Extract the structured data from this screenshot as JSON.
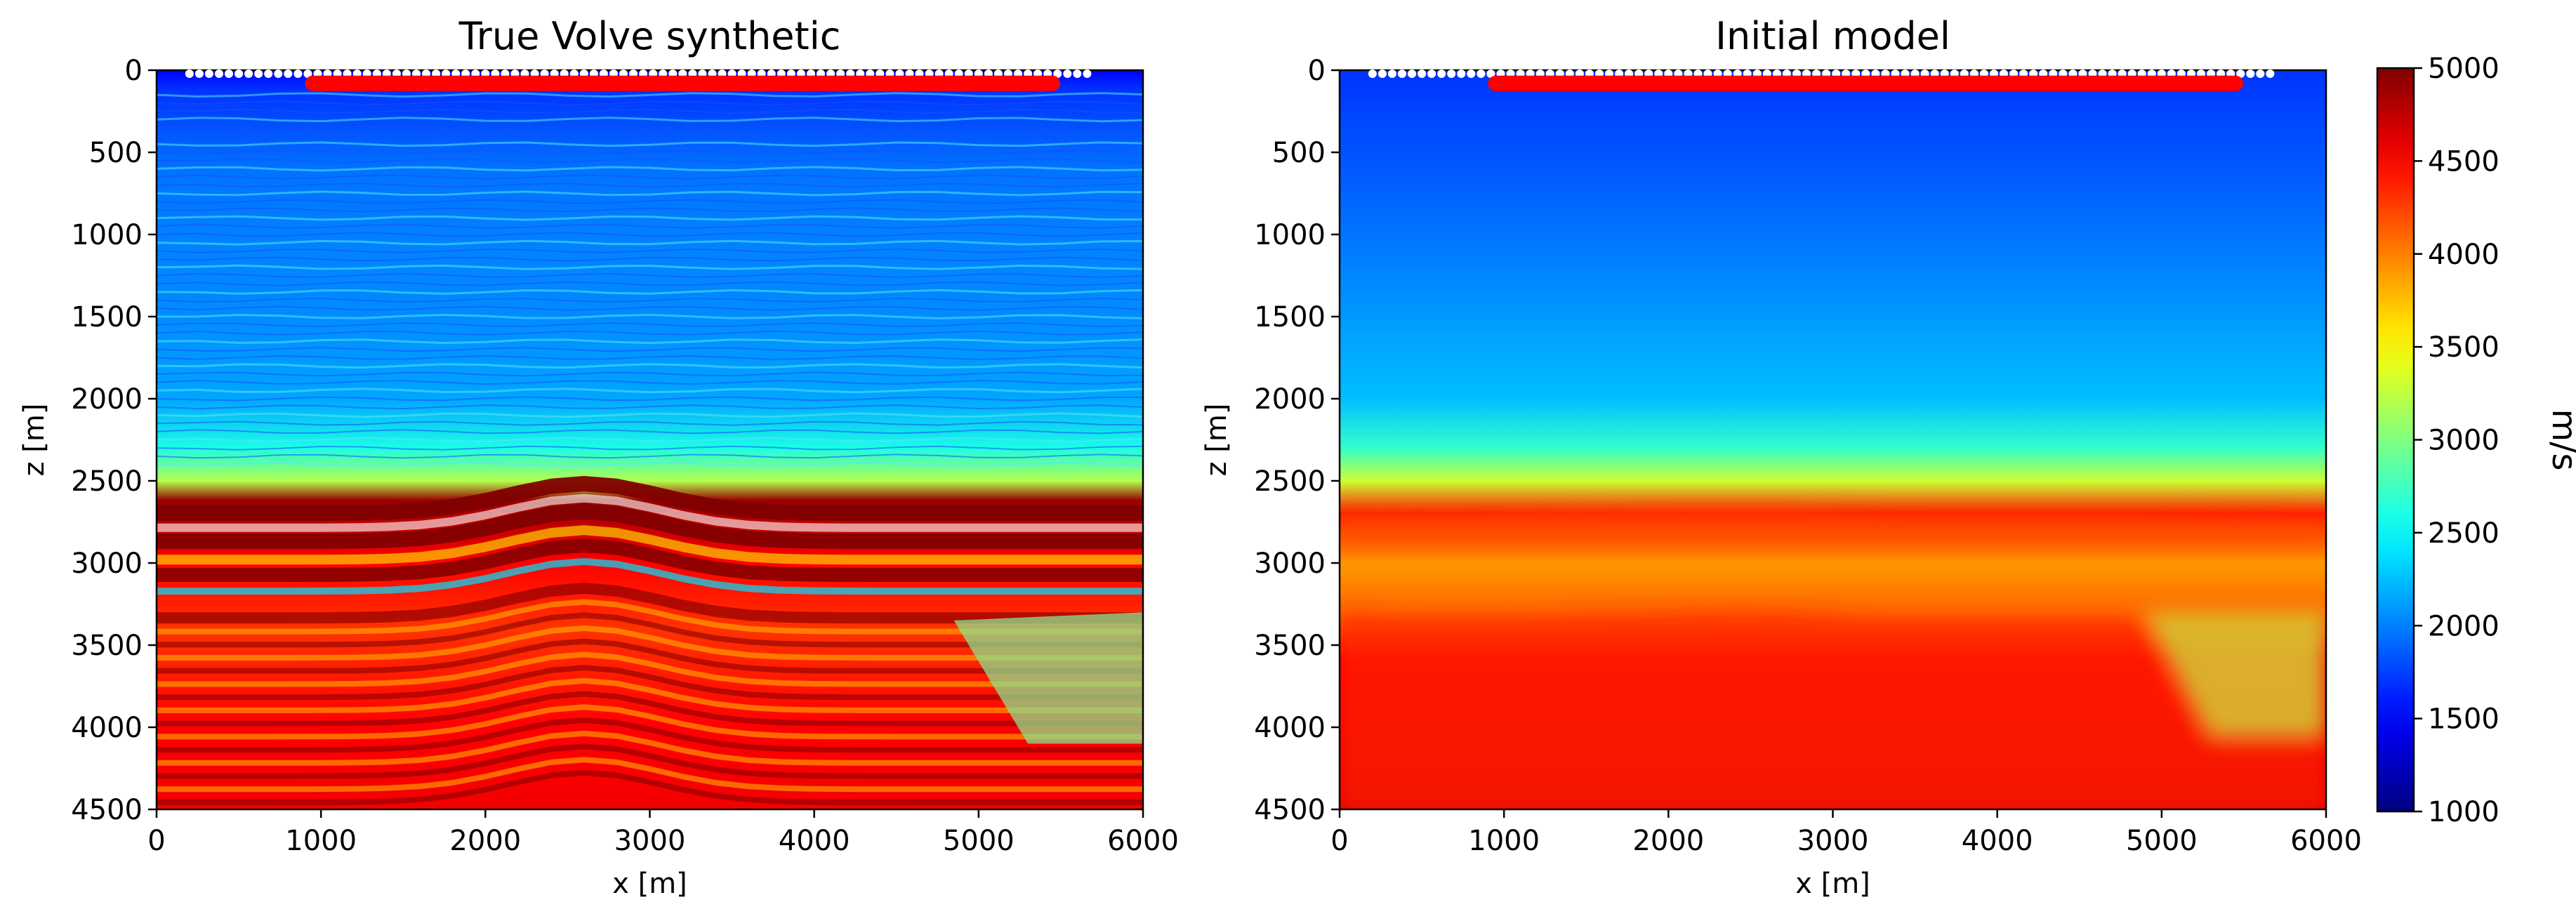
{
  "chart_data": [
    {
      "type": "heatmap",
      "title": "True Volve synthetic",
      "xlabel": "x [m]",
      "ylabel": "z [m]",
      "xlim": [
        0,
        6000
      ],
      "ylim": [
        4500,
        0
      ],
      "xticks": [
        0,
        1000,
        2000,
        3000,
        4000,
        5000,
        6000
      ],
      "yticks": [
        0,
        500,
        1000,
        1500,
        2000,
        2500,
        3000,
        3500,
        4000,
        4500
      ],
      "receivers": {
        "x_start": 200,
        "x_end": 5700,
        "z": 20,
        "color": "#ffffff"
      },
      "sources": {
        "x_start": 950,
        "x_end": 5450,
        "z": 80,
        "color": "#ff0000"
      },
      "velocity_profile": [
        {
          "z": 0,
          "v": 1500
        },
        {
          "z": 120,
          "v": 1700
        },
        {
          "z": 600,
          "v": 1950
        },
        {
          "z": 1000,
          "v": 2000
        },
        {
          "z": 1500,
          "v": 2050
        },
        {
          "z": 2000,
          "v": 2150
        },
        {
          "z": 2300,
          "v": 2600
        },
        {
          "z": 2500,
          "v": 3200
        },
        {
          "z": 2620,
          "v": 4900
        },
        {
          "z": 3000,
          "v": 4500
        },
        {
          "z": 3400,
          "v": 4300
        },
        {
          "z": 4000,
          "v": 4500
        },
        {
          "z": 4500,
          "v": 4550
        }
      ]
    },
    {
      "type": "heatmap",
      "title": "Initial model",
      "xlabel": "x [m]",
      "ylabel": "z [m]",
      "xlim": [
        0,
        6000
      ],
      "ylim": [
        4500,
        0
      ],
      "xticks": [
        0,
        1000,
        2000,
        3000,
        4000,
        5000,
        6000
      ],
      "yticks": [
        0,
        500,
        1000,
        1500,
        2000,
        2500,
        3000,
        3500,
        4000,
        4500
      ],
      "receivers": {
        "x_start": 200,
        "x_end": 5700,
        "z": 20,
        "color": "#ffffff"
      },
      "sources": {
        "x_start": 950,
        "x_end": 5450,
        "z": 80,
        "color": "#ff0000"
      },
      "velocity_profile": [
        {
          "z": 0,
          "v": 1700
        },
        {
          "z": 800,
          "v": 1900
        },
        {
          "z": 1500,
          "v": 2100
        },
        {
          "z": 2000,
          "v": 2250
        },
        {
          "z": 2300,
          "v": 2700
        },
        {
          "z": 2500,
          "v": 3300
        },
        {
          "z": 2700,
          "v": 4400
        },
        {
          "z": 3000,
          "v": 3900
        },
        {
          "z": 3300,
          "v": 4100
        },
        {
          "z": 3600,
          "v": 4500
        },
        {
          "z": 4500,
          "v": 4600
        }
      ]
    }
  ],
  "colorbar": {
    "label": "m/s",
    "vmin": 1000,
    "vmax": 5000,
    "ticks": [
      1000,
      1500,
      2000,
      2500,
      3000,
      3500,
      4000,
      4500,
      5000
    ],
    "colormap": "jet"
  }
}
